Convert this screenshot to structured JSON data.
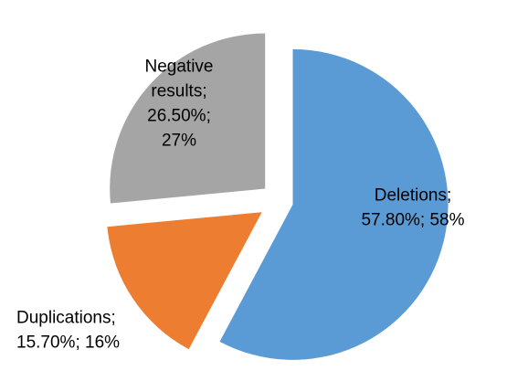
{
  "chart_data": {
    "type": "pie",
    "style": "exploded",
    "title": "",
    "slices": [
      {
        "name": "Deletions",
        "percent": 57.8,
        "rounded_percent": 58,
        "color": "#5b9bd5",
        "label_lines": [
          "Deletions;",
          "57.80%; 58%"
        ]
      },
      {
        "name": "Duplications",
        "percent": 15.7,
        "rounded_percent": 16,
        "color": "#ed7d31",
        "label_lines": [
          "Duplications;",
          "15.70%; 16%"
        ]
      },
      {
        "name": "Negative results",
        "percent": 26.5,
        "rounded_percent": 27,
        "color": "#a5a5a5",
        "label_lines": [
          "Negative",
          "results;",
          "26.50%;",
          "27%"
        ]
      }
    ],
    "legend": "none"
  }
}
